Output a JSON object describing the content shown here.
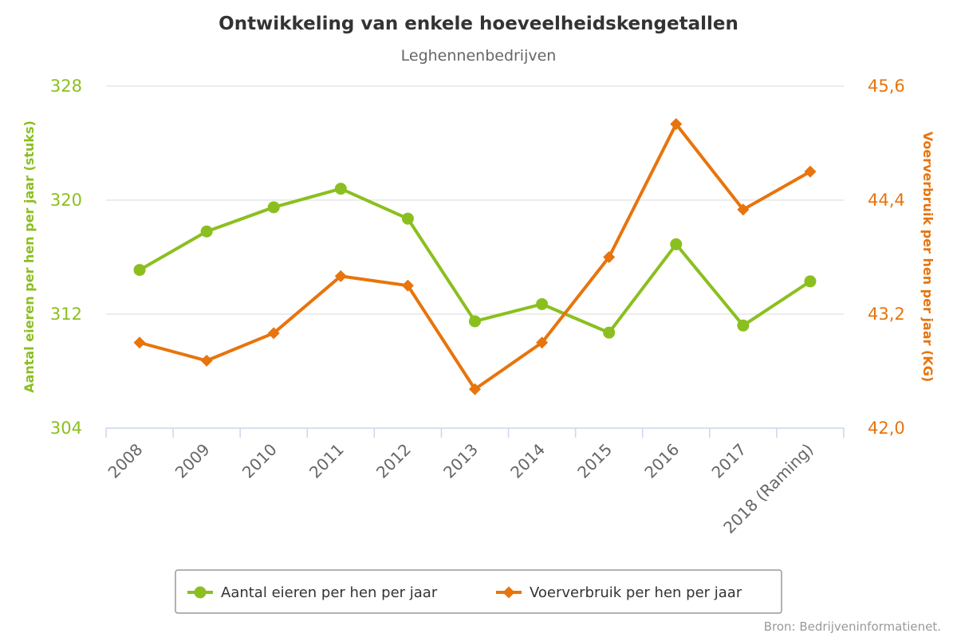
{
  "chart_data": {
    "type": "line",
    "title": "Ontwikkeling van enkele hoeveelheidskengetallen",
    "subtitle": "Leghennenbedrijven",
    "categories": [
      "2008",
      "2009",
      "2010",
      "2011",
      "2012",
      "2013",
      "2014",
      "2015",
      "2016",
      "2017",
      "2018 (Raming)"
    ],
    "y_left": {
      "label": "Aantal eieren per hen per jaar (stuks)",
      "range": [
        304,
        328
      ],
      "ticks": [
        "304",
        "312",
        "320",
        "328"
      ],
      "color": "#8BBF1F"
    },
    "y_right": {
      "label": "Voerverbruik per hen per jaar (KG)",
      "range": [
        42.0,
        45.6
      ],
      "ticks": [
        "42,0",
        "43,2",
        "44,4",
        "45,6"
      ],
      "color": "#E8740C"
    },
    "series": [
      {
        "name": "Aantal eieren per hen per jaar",
        "axis": "left",
        "marker": "circle",
        "color": "#8BBF1F",
        "values": [
          315.1,
          317.8,
          319.5,
          320.8,
          318.7,
          311.5,
          312.7,
          310.7,
          316.9,
          311.2,
          314.3
        ]
      },
      {
        "name": "Voerverbruik per hen per jaar",
        "axis": "right",
        "marker": "diamond",
        "color": "#E8740C",
        "values": [
          42.9,
          42.71,
          43.0,
          43.6,
          43.5,
          42.41,
          42.9,
          43.8,
          45.2,
          44.3,
          44.7
        ]
      }
    ],
    "grid": true,
    "legend_position": "bottom"
  },
  "credits": "Bron: Bedrijveninformatienet."
}
